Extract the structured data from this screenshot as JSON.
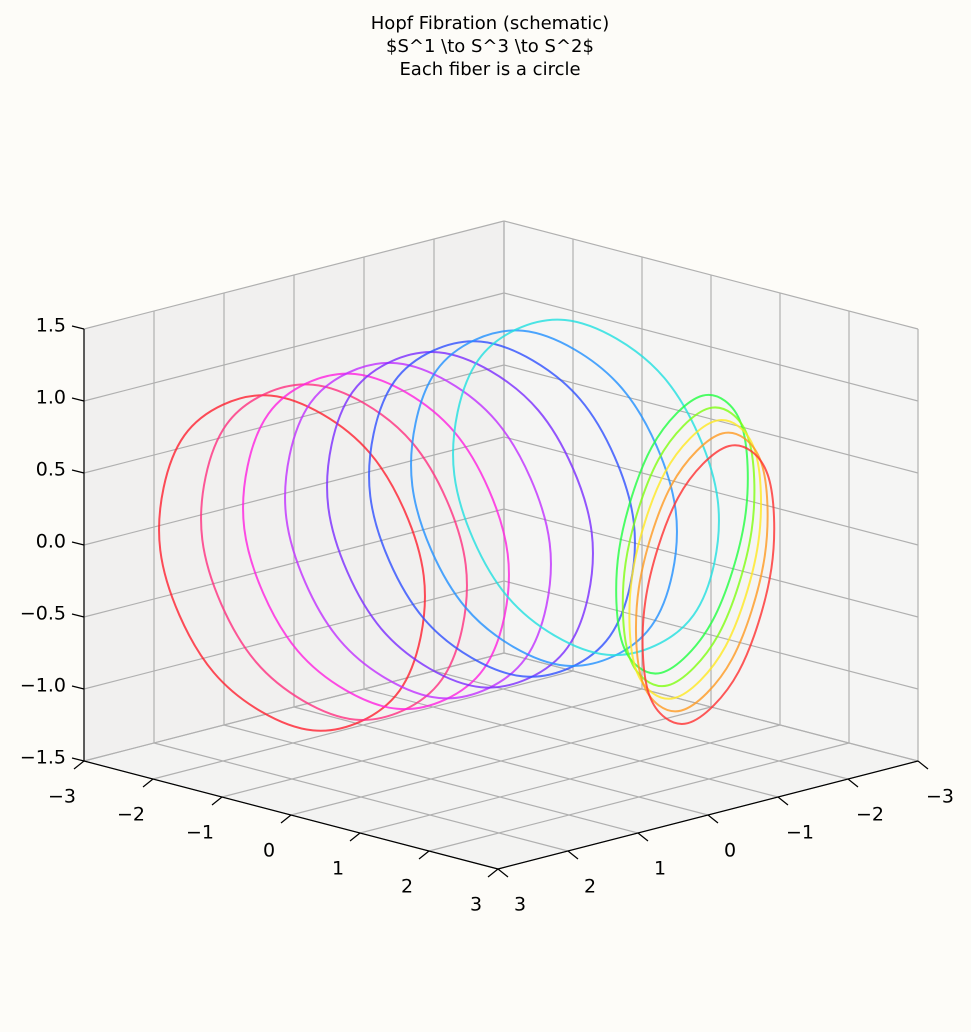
{
  "chart_data": {
    "type": "line3d",
    "title": [
      "Hopf Fibration (schematic)",
      "$S^1 \\to S^3 \\to S^2$",
      "Each fiber is a circle"
    ],
    "xlim": [
      -3,
      3
    ],
    "ylim": [
      -3,
      3
    ],
    "zlim": [
      -1.5,
      1.5
    ],
    "xticks": [
      {
        "value": -3,
        "label": "−3"
      },
      {
        "value": -2,
        "label": "−2"
      },
      {
        "value": -1,
        "label": "−1"
      },
      0,
      1,
      2,
      3
    ],
    "yticks": [
      {
        "value": -3,
        "label": "−3"
      },
      {
        "value": -2,
        "label": "−2"
      },
      {
        "value": -1,
        "label": "−1"
      },
      0,
      1,
      2,
      3
    ],
    "zticks": [
      {
        "value": -1.5,
        "label": "−1.5"
      },
      {
        "value": -1.0,
        "label": "−1.0"
      },
      {
        "value": -0.5,
        "label": "−0.5"
      },
      {
        "value": 0,
        "label": "0.0"
      },
      0.5,
      {
        "value": 1.0,
        "label": "1.0"
      },
      1.5
    ],
    "grid": true,
    "series": [
      {
        "color": "#ff2030",
        "x": [
          0.3,
          -0.08,
          -1,
          -1.92,
          -2.3,
          -1.92,
          -1,
          -0.08
        ],
        "y": [
          1.4,
          1.79,
          2.3,
          2.63,
          2.6,
          2.21,
          1.7,
          1.37
        ],
        "z": [
          0,
          0.85,
          1.2,
          0.85,
          0,
          -0.85,
          -1.2,
          -0.85
        ]
      },
      {
        "color": "#ff3080",
        "x": [
          0.3,
          -0.08,
          -1,
          -1.92,
          -2.3,
          -1.92,
          -1,
          -0.08
        ],
        "y": [
          0.8,
          1.19,
          1.7,
          2.03,
          2.0,
          1.61,
          1.1,
          0.77
        ],
        "z": [
          0,
          0.85,
          1.2,
          0.85,
          0,
          -0.85,
          -1.2,
          -0.85
        ]
      },
      {
        "color": "#ff20e0",
        "x": [
          0.3,
          -0.08,
          -1,
          -1.92,
          -2.3,
          -1.92,
          -1,
          -0.08
        ],
        "y": [
          0.2,
          0.59,
          1.1,
          1.43,
          1.4,
          1.01,
          0.5,
          0.17
        ],
        "z": [
          0,
          0.85,
          1.2,
          0.85,
          0,
          -0.85,
          -1.2,
          -0.85
        ]
      },
      {
        "color": "#c030ff",
        "x": [
          0.3,
          -0.08,
          -1,
          -1.92,
          -2.3,
          -1.92,
          -1,
          -0.08
        ],
        "y": [
          -0.4,
          -0.01,
          0.5,
          0.83,
          0.8,
          0.41,
          -0.1,
          -0.43
        ],
        "z": [
          0,
          0.85,
          1.2,
          0.85,
          0,
          -0.85,
          -1.2,
          -0.85
        ]
      },
      {
        "color": "#7a2cff",
        "x": [
          0.3,
          -0.08,
          -1,
          -1.92,
          -2.3,
          -1.92,
          -1,
          -0.08
        ],
        "y": [
          -1.0,
          -0.61,
          -0.1,
          0.23,
          0.2,
          -0.19,
          -0.7,
          -1.03
        ],
        "z": [
          0,
          0.85,
          1.2,
          0.85,
          0,
          -0.85,
          -1.2,
          -0.85
        ]
      },
      {
        "color": "#3050ff",
        "x": [
          0.3,
          -0.08,
          -1,
          -1.92,
          -2.3,
          -1.92,
          -1,
          -0.08
        ],
        "y": [
          -1.6,
          -1.21,
          -0.7,
          -0.37,
          -0.4,
          -0.79,
          -1.3,
          -1.63
        ],
        "z": [
          0,
          0.85,
          1.2,
          0.85,
          0,
          -0.85,
          -1.2,
          -0.85
        ]
      },
      {
        "color": "#2090ff",
        "x": [
          0.3,
          -0.08,
          -1,
          -1.92,
          -2.3,
          -1.92,
          -1,
          -0.08
        ],
        "y": [
          -2.2,
          -1.81,
          -1.3,
          -0.97,
          -1.0,
          -1.39,
          -1.9,
          -2.23
        ],
        "z": [
          0,
          0.85,
          1.2,
          0.85,
          0,
          -0.85,
          -1.2,
          -0.85
        ]
      },
      {
        "color": "#20e0e0",
        "x": [
          0.3,
          -0.08,
          -1,
          -1.92,
          -2.3,
          -1.92,
          -1,
          -0.08
        ],
        "y": [
          -2.8,
          -2.41,
          -1.9,
          -1.57,
          -1.6,
          -1.99,
          -2.5,
          -2.83
        ],
        "z": [
          0,
          0.85,
          1.2,
          0.85,
          0,
          -0.85,
          -1.2,
          -0.85
        ]
      },
      {
        "color": "#20ff40",
        "x": [
          1.0,
          1.21,
          1.3,
          1.21,
          1.0,
          0.79,
          0.7,
          0.79
        ],
        "y": [
          -2.5,
          -2.24,
          -1.6,
          -0.96,
          -0.7,
          -0.96,
          -1.6,
          -2.24
        ],
        "z": [
          0,
          0.71,
          1.0,
          0.71,
          0,
          -0.71,
          -1.0,
          -0.71
        ]
      },
      {
        "color": "#80ff10",
        "x": [
          1.4,
          1.61,
          1.7,
          1.61,
          1.4,
          1.19,
          1.1,
          1.19
        ],
        "y": [
          -2.2,
          -1.94,
          -1.3,
          -0.66,
          -0.4,
          -0.66,
          -1.3,
          -1.94
        ],
        "z": [
          0,
          0.71,
          1.0,
          0.71,
          0,
          -0.71,
          -1.0,
          -0.71
        ]
      },
      {
        "color": "#ffe820",
        "x": [
          1.8,
          2.01,
          2.1,
          2.01,
          1.8,
          1.59,
          1.5,
          1.59
        ],
        "y": [
          -1.9,
          -1.64,
          -1.0,
          -0.36,
          -0.1,
          -0.36,
          -1.0,
          -1.64
        ],
        "z": [
          0,
          0.71,
          1.0,
          0.71,
          0,
          -0.71,
          -1.0,
          -0.71
        ]
      },
      {
        "color": "#ff9a20",
        "x": [
          2.2,
          2.41,
          2.5,
          2.41,
          2.2,
          1.99,
          1.9,
          1.99
        ],
        "y": [
          -1.6,
          -1.34,
          -0.7,
          -0.06,
          0.2,
          -0.06,
          -0.7,
          -1.34
        ],
        "z": [
          0,
          0.71,
          1.0,
          0.71,
          0,
          -0.71,
          -1.0,
          -0.71
        ]
      },
      {
        "color": "#ff3030",
        "x": [
          2.6,
          2.81,
          2.9,
          2.81,
          2.6,
          2.39,
          2.3,
          2.39
        ],
        "y": [
          -1.3,
          -1.04,
          -0.4,
          0.24,
          0.5,
          0.24,
          -0.4,
          -1.04
        ],
        "z": [
          0,
          0.71,
          1.0,
          0.71,
          0,
          -0.71,
          -1.0,
          -0.71
        ]
      }
    ]
  }
}
